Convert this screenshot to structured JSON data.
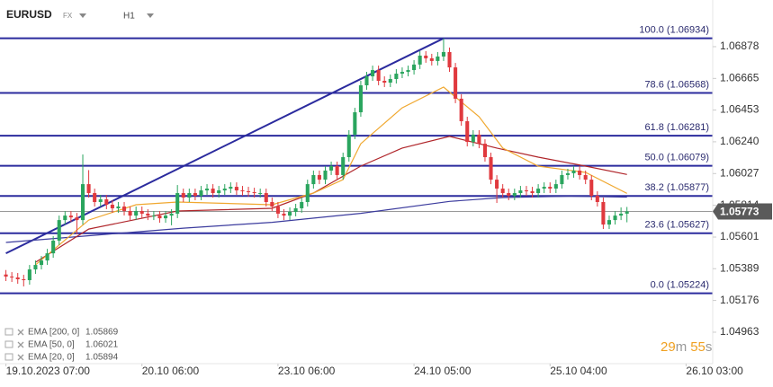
{
  "header": {
    "symbol": "EURUSD",
    "market": "FX",
    "timeframe": "H1"
  },
  "chart_data": {
    "type": "candlestick",
    "x": [
      0,
      1,
      2,
      3,
      4,
      5,
      6,
      7,
      8,
      9,
      10,
      11,
      12,
      13,
      14,
      15,
      16,
      17,
      18,
      19,
      20,
      21,
      22,
      23,
      24,
      25,
      26,
      27,
      28,
      29,
      30,
      31,
      32,
      33,
      34,
      35,
      36,
      37,
      38,
      39,
      40,
      41,
      42,
      43,
      44,
      45,
      46,
      47,
      48,
      49,
      50,
      51,
      52,
      53,
      54,
      55,
      56,
      57,
      58,
      59,
      60,
      61,
      62,
      63,
      64,
      65,
      66,
      67,
      68,
      69,
      70,
      71,
      72,
      73,
      74,
      75,
      76,
      77,
      78,
      79,
      80,
      81,
      82,
      83,
      84,
      85,
      86,
      87,
      88,
      89,
      90,
      91,
      92,
      93,
      94,
      95,
      96,
      97,
      98,
      99,
      100,
      101,
      102,
      103,
      104,
      105
    ],
    "open": [
      1.0535,
      1.05336,
      1.0533,
      1.05318,
      1.05312,
      1.05384,
      1.05414,
      1.05444,
      1.05492,
      1.05577,
      1.05715,
      1.05745,
      1.05733,
      1.05715,
      1.05956,
      1.05896,
      1.05836,
      1.05854,
      1.05818,
      1.05794,
      1.05806,
      1.05776,
      1.05745,
      1.05776,
      1.05758,
      1.05745,
      1.05745,
      1.05727,
      1.05745,
      1.05758,
      1.05896,
      1.05866,
      1.05896,
      1.05878,
      1.05914,
      1.05926,
      1.05896,
      1.05914,
      1.05926,
      1.05938,
      1.05914,
      1.05908,
      1.05902,
      1.05896,
      1.05896,
      1.05836,
      1.05806,
      1.05758,
      1.05745,
      1.0577,
      1.05794,
      1.05836,
      1.05956,
      1.06017,
      1.05986,
      1.06047,
      1.06077,
      1.06017,
      1.06137,
      1.06288,
      1.06438,
      1.06619,
      1.06679,
      1.06721,
      1.06649,
      1.06637,
      1.06661,
      1.06697,
      1.06709,
      1.06721,
      1.06758,
      1.06818,
      1.068,
      1.06782,
      1.06812,
      1.06842,
      1.06739,
      1.06529,
      1.06378,
      1.06239,
      1.06288,
      1.06227,
      1.06137,
      1.05986,
      1.05926,
      1.05896,
      1.05878,
      1.05896,
      1.05914,
      1.05908,
      1.05896,
      1.05926,
      1.05938,
      1.05926,
      1.05956,
      1.06017,
      1.06029,
      1.06047,
      1.06017,
      1.05986,
      1.05878,
      1.05836,
      1.05685,
      1.05715,
      1.05745,
      1.05758
    ],
    "high": [
      1.0538,
      1.05366,
      1.0536,
      1.05348,
      1.05414,
      1.05444,
      1.05474,
      1.05522,
      1.05607,
      1.05745,
      1.05775,
      1.05775,
      1.05763,
      1.06155,
      1.0605,
      1.05926,
      1.05884,
      1.05884,
      1.05848,
      1.05836,
      1.05836,
      1.05806,
      1.05806,
      1.05806,
      1.05788,
      1.05775,
      1.05775,
      1.05775,
      1.05788,
      1.0595,
      1.05926,
      1.05926,
      1.05926,
      1.05944,
      1.05956,
      1.05956,
      1.05944,
      1.05956,
      1.05968,
      1.05968,
      1.05944,
      1.05938,
      1.05932,
      1.05926,
      1.05926,
      1.05866,
      1.05836,
      1.05788,
      1.058,
      1.05824,
      1.05866,
      1.05986,
      1.06047,
      1.06047,
      1.06077,
      1.06107,
      1.06107,
      1.06167,
      1.06318,
      1.06468,
      1.06649,
      1.06709,
      1.06751,
      1.06751,
      1.06679,
      1.06691,
      1.06727,
      1.06739,
      1.06751,
      1.06788,
      1.06848,
      1.06848,
      1.0683,
      1.06842,
      1.06934,
      1.06872,
      1.06769,
      1.06559,
      1.06408,
      1.06318,
      1.06318,
      1.06257,
      1.06167,
      1.06016,
      1.05956,
      1.05926,
      1.05926,
      1.05944,
      1.05944,
      1.05938,
      1.05956,
      1.05968,
      1.05968,
      1.05986,
      1.06047,
      1.06059,
      1.06077,
      1.06077,
      1.06047,
      1.06016,
      1.05908,
      1.05866,
      1.05745,
      1.05775,
      1.058,
      1.05803
    ],
    "low": [
      1.05306,
      1.053,
      1.05288,
      1.0527,
      1.05282,
      1.05354,
      1.05384,
      1.05414,
      1.05462,
      1.05547,
      1.05685,
      1.05703,
      1.0562,
      1.05685,
      1.05866,
      1.05806,
      1.05806,
      1.05788,
      1.05764,
      1.05764,
      1.05746,
      1.05715,
      1.05715,
      1.05728,
      1.05715,
      1.05715,
      1.05697,
      1.05697,
      1.0568,
      1.05728,
      1.05836,
      1.05836,
      1.05848,
      1.05848,
      1.05884,
      1.05866,
      1.05866,
      1.05884,
      1.05896,
      1.05884,
      1.05878,
      1.05872,
      1.05866,
      1.05866,
      1.05806,
      1.05776,
      1.05728,
      1.05715,
      1.05715,
      1.0574,
      1.05764,
      1.05806,
      1.05926,
      1.05956,
      1.05956,
      1.06017,
      1.05987,
      1.05987,
      1.06107,
      1.06258,
      1.06408,
      1.06589,
      1.06649,
      1.06619,
      1.06607,
      1.06607,
      1.06631,
      1.06667,
      1.06679,
      1.06691,
      1.06728,
      1.0677,
      1.06752,
      1.06752,
      1.06782,
      1.06709,
      1.06499,
      1.06348,
      1.06209,
      1.06209,
      1.06197,
      1.06107,
      1.05956,
      1.0583,
      1.05866,
      1.05848,
      1.05848,
      1.05866,
      1.05878,
      1.05866,
      1.05866,
      1.05896,
      1.05896,
      1.05896,
      1.05926,
      1.05987,
      1.05999,
      1.05987,
      1.05956,
      1.05848,
      1.05806,
      1.05655,
      1.05655,
      1.05685,
      1.05715,
      1.057
    ],
    "close": [
      1.05336,
      1.0533,
      1.05318,
      1.05312,
      1.05384,
      1.05414,
      1.05444,
      1.05492,
      1.05577,
      1.05715,
      1.05745,
      1.05733,
      1.05715,
      1.05956,
      1.05896,
      1.05836,
      1.05854,
      1.05818,
      1.05794,
      1.05806,
      1.05776,
      1.05745,
      1.05776,
      1.05758,
      1.05745,
      1.05745,
      1.05727,
      1.05745,
      1.05758,
      1.05896,
      1.05866,
      1.05896,
      1.05878,
      1.05914,
      1.05926,
      1.05896,
      1.05914,
      1.05926,
      1.05938,
      1.05914,
      1.05908,
      1.05902,
      1.05896,
      1.05896,
      1.05836,
      1.05806,
      1.05758,
      1.05745,
      1.0577,
      1.05794,
      1.05836,
      1.05956,
      1.06017,
      1.05986,
      1.06047,
      1.06077,
      1.06017,
      1.06137,
      1.06288,
      1.06438,
      1.06619,
      1.06679,
      1.06721,
      1.06649,
      1.06637,
      1.06661,
      1.06697,
      1.06709,
      1.06721,
      1.06758,
      1.06818,
      1.068,
      1.06782,
      1.06812,
      1.06842,
      1.06739,
      1.06529,
      1.06378,
      1.06239,
      1.06288,
      1.06227,
      1.06137,
      1.05986,
      1.05926,
      1.05896,
      1.05878,
      1.05896,
      1.05914,
      1.05908,
      1.05896,
      1.05926,
      1.05938,
      1.05926,
      1.05956,
      1.06017,
      1.06029,
      1.06047,
      1.06017,
      1.05986,
      1.05878,
      1.05836,
      1.05685,
      1.05715,
      1.05745,
      1.05758,
      1.05773
    ],
    "up_color": "#2aa55e",
    "down_color": "#e0393e",
    "series": [
      {
        "name": "EMA [200, 0]",
        "color": "#3c3c9e",
        "x": [
          0,
          15,
          30,
          45,
          60,
          75,
          84,
          95,
          105
        ],
        "values": [
          1.05565,
          1.05613,
          1.05661,
          1.057,
          1.0576,
          1.0584,
          1.05866,
          1.05875,
          1.05869
        ]
      },
      {
        "name": "EMA [50, 0]",
        "color": "#b0262b",
        "x": [
          5,
          14,
          29,
          45,
          52,
          60,
          67,
          75,
          83,
          90,
          98,
          105
        ],
        "values": [
          1.05432,
          1.05655,
          1.05776,
          1.05794,
          1.05896,
          1.06077,
          1.06198,
          1.06276,
          1.06198,
          1.06137,
          1.06077,
          1.06021
        ]
      },
      {
        "name": "EMA [20, 0]",
        "color": "#f0a830",
        "x": [
          5,
          14,
          22,
          29,
          45,
          52,
          57,
          60,
          67,
          74,
          80,
          84,
          90,
          98,
          105
        ],
        "values": [
          1.05414,
          1.05715,
          1.05818,
          1.05836,
          1.05818,
          1.05896,
          1.05986,
          1.06227,
          1.06468,
          1.06607,
          1.06408,
          1.06198,
          1.06077,
          1.06035,
          1.05894
        ]
      }
    ],
    "trend_line": {
      "color": "#2b2b9e",
      "x": [
        0,
        74
      ],
      "values": [
        1.05492,
        1.06934
      ]
    },
    "fib_color": "#2b2b9e",
    "fib_levels": [
      {
        "value": 1.06934,
        "label": "100.0 (1.06934)"
      },
      {
        "value": 1.06568,
        "label": "78.6 (1.06568)"
      },
      {
        "value": 1.06281,
        "label": "61.8 (1.06281)"
      },
      {
        "value": 1.06079,
        "label": "50.0 (1.06079)"
      },
      {
        "value": 1.05877,
        "label": "38.2 (1.05877)"
      },
      {
        "value": 1.05627,
        "label": "23.6 (1.05627)"
      },
      {
        "value": 1.05224,
        "label": "0.0 (1.05224)"
      }
    ],
    "last_price": 1.05773,
    "xlim": [
      -1,
      119.5
    ],
    "ylim": [
      1.04752,
      1.07191
    ],
    "xticks": [
      {
        "value": 0,
        "label": "19.10.2023 07:00"
      },
      {
        "value": 23,
        "label": "20.10 06:00"
      },
      {
        "value": 46,
        "label": "23.10 06:00"
      },
      {
        "value": 69,
        "label": "24.10 05:00"
      },
      {
        "value": 92,
        "label": "25.10 04:00"
      },
      {
        "value": 115,
        "label": "26.10 03:00"
      }
    ],
    "yticks": [
      1.06878,
      1.06665,
      1.06453,
      {
        "value": 1.0624,
        "label": "1.06240"
      },
      1.06027,
      1.05814,
      1.05601,
      1.05389,
      1.05176,
      1.04963
    ],
    "countdown": {
      "minutes": "29",
      "minutes_unit": "m",
      "seconds": "55",
      "seconds_unit": "s"
    }
  }
}
